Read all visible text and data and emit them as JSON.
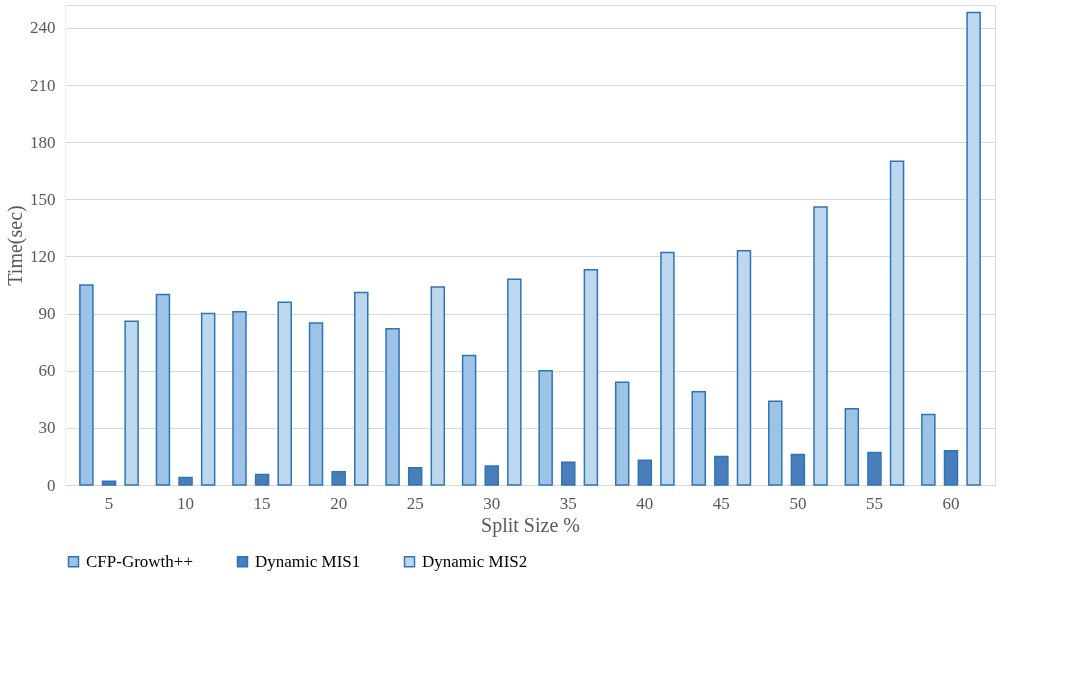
{
  "chart_data": {
    "type": "bar",
    "xlabel": "Split Size %",
    "ylabel": "Time(sec)",
    "categories": [
      "5",
      "10",
      "15",
      "20",
      "25",
      "30",
      "35",
      "40",
      "45",
      "50",
      "55",
      "60"
    ],
    "series": [
      {
        "name": "CFP-Growth++",
        "color": "#9dc3e6",
        "values": [
          105,
          100,
          91,
          85,
          82,
          68,
          60,
          54,
          49,
          44,
          40,
          37
        ]
      },
      {
        "name": "Dynamic MIS1",
        "color": "#4a7ebb",
        "values": [
          2,
          4,
          5.5,
          7,
          9,
          10,
          12,
          13,
          15,
          16,
          17,
          18
        ]
      },
      {
        "name": "Dynamic MIS2",
        "color": "#bdd7ee",
        "values": [
          86,
          90,
          96,
          101,
          104,
          108,
          113,
          122,
          123,
          146,
          170,
          248
        ]
      }
    ],
    "ylim": [
      0,
      252
    ],
    "yticks": [
      0,
      30,
      60,
      90,
      120,
      150,
      180,
      210,
      240
    ],
    "grid": "y",
    "legend": "bottom"
  }
}
